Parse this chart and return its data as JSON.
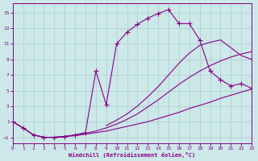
{
  "xlabel": "Windchill (Refroidissement éolien,°C)",
  "bg_color": "#cce8e8",
  "grid_color": "#aacccc",
  "line_color": "#880088",
  "xlim": [
    0,
    23
  ],
  "ylim": [
    -1.8,
    16.2
  ],
  "xticks": [
    0,
    1,
    2,
    3,
    4,
    5,
    6,
    7,
    8,
    9,
    10,
    11,
    12,
    13,
    14,
    15,
    16,
    17,
    18,
    19,
    20,
    21,
    22,
    23
  ],
  "yticks": [
    -1,
    1,
    3,
    5,
    7,
    9,
    11,
    13,
    15
  ],
  "lines": [
    {
      "x": [
        0,
        1,
        2,
        3,
        4,
        5,
        6,
        7,
        8,
        9,
        10,
        11,
        12,
        13,
        14,
        15,
        16,
        17,
        18,
        19,
        20,
        21,
        22,
        23
      ],
      "y": [
        1.0,
        0.2,
        -0.7,
        -1.0,
        -1.0,
        -0.9,
        -0.8,
        -0.6,
        -0.4,
        -0.2,
        0.1,
        0.4,
        0.7,
        1.0,
        1.4,
        1.8,
        2.2,
        2.7,
        3.1,
        3.5,
        4.0,
        4.4,
        4.8,
        5.2
      ],
      "has_markers": false
    },
    {
      "x": [
        0,
        1,
        2,
        3,
        4,
        5,
        6,
        7,
        8,
        9,
        10,
        11,
        12,
        13,
        14,
        15,
        16,
        17,
        18,
        19,
        20,
        21,
        22,
        23
      ],
      "y": [
        1.0,
        0.2,
        -0.7,
        -1.0,
        -1.0,
        -0.9,
        -0.7,
        -0.5,
        -0.2,
        0.2,
        0.7,
        1.3,
        2.0,
        2.9,
        3.8,
        4.8,
        5.8,
        6.7,
        7.5,
        8.2,
        8.8,
        9.3,
        9.7,
        10.0
      ],
      "has_markers": false
    },
    {
      "x": [
        0,
        1,
        2,
        3,
        4,
        5,
        6,
        7,
        8,
        9,
        10,
        11,
        12,
        13,
        14,
        15,
        16,
        17,
        18,
        19,
        20,
        21,
        22,
        23
      ],
      "y": [
        1.0,
        0.2,
        -0.7,
        -1.0,
        -1.0,
        -0.9,
        -0.7,
        -0.4,
        7.5,
        3.2,
        11.0,
        12.5,
        13.5,
        14.3,
        14.9,
        15.4,
        13.6,
        13.6,
        11.5,
        7.5,
        6.4,
        5.6,
        5.9,
        5.3
      ],
      "has_markers": true
    },
    {
      "x": [
        9,
        10,
        11,
        12,
        13,
        14,
        15,
        16,
        17,
        18,
        19,
        20,
        21,
        22,
        23
      ],
      "y": [
        0.5,
        1.2,
        2.0,
        3.0,
        4.2,
        5.5,
        7.0,
        8.5,
        9.8,
        10.8,
        11.2,
        11.5,
        10.5,
        9.5,
        9.0
      ],
      "has_markers": false
    }
  ]
}
